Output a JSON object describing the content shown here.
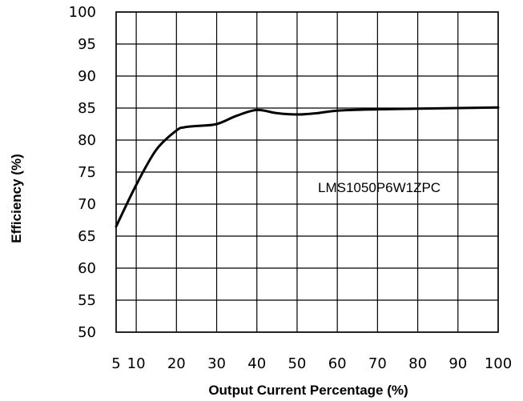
{
  "chart_data": {
    "type": "line",
    "xlabel": "Output Current Percentage (%)",
    "ylabel": "Efficiency (%)",
    "xlim": [
      5,
      100
    ],
    "ylim": [
      50,
      100
    ],
    "xticks": [
      "5",
      "10",
      "20",
      "30",
      "40",
      "50",
      "60",
      "70",
      "80",
      "90",
      "100"
    ],
    "yticks": [
      "100",
      "95",
      "90",
      "85",
      "80",
      "75",
      "70",
      "65",
      "60",
      "55",
      "50"
    ],
    "grid": true,
    "annotation": "LMS1050P6W1ZPC",
    "series": [
      {
        "name": "LMS1050P6W1ZPC",
        "x": [
          5,
          10,
          15,
          20,
          22,
          25,
          30,
          35,
          40,
          45,
          50,
          55,
          60,
          70,
          80,
          90,
          100
        ],
        "y": [
          66.5,
          73,
          78.5,
          81.5,
          82,
          82.2,
          82.5,
          83.8,
          84.7,
          84.2,
          84.0,
          84.2,
          84.6,
          84.8,
          84.9,
          85.0,
          85.1
        ]
      }
    ],
    "line_color": "#000000"
  }
}
